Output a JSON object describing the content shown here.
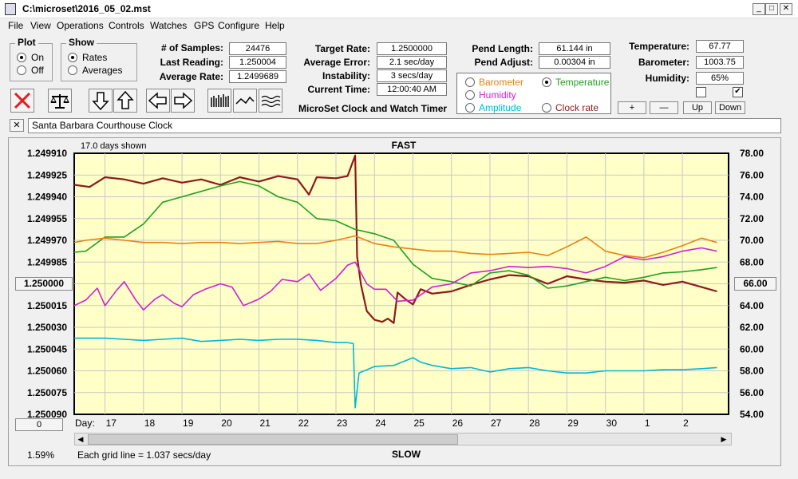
{
  "window": {
    "title": "C:\\microset\\2016_05_02.mst",
    "min": "_",
    "max": "□",
    "close": "✕"
  },
  "menu": [
    "File",
    "View",
    "Operations",
    "Controls",
    "Watches",
    "GPS",
    "Configure",
    "Help"
  ],
  "plot_group": {
    "title": "Plot",
    "options": [
      "On",
      "Off"
    ],
    "selected": "On"
  },
  "show_group": {
    "title": "Show",
    "options": [
      "Rates",
      "Averages"
    ],
    "selected": "Rates"
  },
  "stats": [
    {
      "label": "# of Samples:",
      "value": "24476"
    },
    {
      "label": "Last Reading:",
      "value": "1.250004"
    },
    {
      "label": "Average Rate:",
      "value": "1.2499689"
    }
  ],
  "rates": [
    {
      "label": "Target Rate:",
      "value": "1.2500000"
    },
    {
      "label": "Average Error:",
      "value": "2.1 sec/day"
    },
    {
      "label": "Instability:",
      "value": "3 secs/day"
    },
    {
      "label": "Current Time:",
      "value": "12:00:40 AM"
    }
  ],
  "app_title": "MicroSet Clock and Watch Timer",
  "pendulum": [
    {
      "label": "Pend Length:",
      "value": "61.144 in"
    },
    {
      "label": "Pend Adjust:",
      "value": "0.00304 in"
    }
  ],
  "sensor_radios": [
    {
      "label": "Barometer",
      "color": "#e8820e",
      "selected": false
    },
    {
      "label": "Temperature",
      "color": "#20a020",
      "selected": true
    },
    {
      "label": "Humidity",
      "color": "#d020d0",
      "selected": false
    },
    {
      "label": "Clock rate",
      "color": "#8b1a1a",
      "selected": false
    },
    {
      "label": "Amplitude",
      "color": "#00b8d8",
      "selected": false
    }
  ],
  "env": [
    {
      "label": "Temperature:",
      "value": "67.77"
    },
    {
      "label": "Barometer:",
      "value": "1003.75"
    },
    {
      "label": "Humidity:",
      "value": "65%"
    }
  ],
  "checkboxes": [
    {
      "checked": false,
      "mark": ""
    },
    {
      "checked": true,
      "mark": "✔"
    }
  ],
  "scale_buttons": [
    "+",
    "—",
    "Up",
    "Down"
  ],
  "clock_name": "Santa Barbara Courthouse Clock",
  "clear_button": "✕",
  "chart_left_button": "1.250000",
  "chart_right_button": "66.00",
  "zero_button": "0",
  "percent_text": "1.59%",
  "grid_note": "Each grid line = 1.037 secs/day",
  "chart_data": {
    "type": "line",
    "title": "FAST",
    "bottom_label": "SLOW",
    "days_shown": "17.0 days shown",
    "x_axis_label": "Day:",
    "x_ticks": [
      "17",
      "18",
      "19",
      "20",
      "21",
      "22",
      "23",
      "24",
      "25",
      "26",
      "27",
      "28",
      "29",
      "30",
      "1",
      "2"
    ],
    "y_left_ticks": [
      "1.249910",
      "1.249925",
      "1.249940",
      "1.249955",
      "1.249970",
      "1.249985",
      "1.250000",
      "1.250015",
      "1.250030",
      "1.250045",
      "1.250060",
      "1.250075",
      "1.250090"
    ],
    "y_left_range": [
      1.24991,
      1.25009
    ],
    "y_right_ticks": [
      "78.00",
      "76.00",
      "74.00",
      "72.00",
      "70.00",
      "68.00",
      "66.00",
      "64.00",
      "62.00",
      "60.00",
      "58.00",
      "56.00",
      "54.00"
    ],
    "y_right_range": [
      54,
      78
    ],
    "background": "#ffffc8",
    "x_range": [
      16.2,
      33.2
    ],
    "series": [
      {
        "name": "Clock rate",
        "color": "#8b1a1a",
        "x": [
          16.2,
          16.6,
          17.0,
          17.5,
          18.0,
          18.5,
          19.0,
          19.5,
          20.0,
          20.5,
          21.0,
          21.5,
          22.0,
          22.3,
          22.5,
          23.0,
          23.3,
          23.5,
          23.55,
          23.65,
          23.8,
          24.0,
          24.2,
          24.35,
          24.5,
          24.6,
          24.8,
          25.0,
          25.2,
          25.5,
          26.0,
          26.5,
          27.0,
          27.5,
          28.0,
          28.5,
          29.0,
          29.5,
          30.0,
          30.5,
          31.0,
          31.5,
          32.0,
          32.5,
          32.9
        ],
        "y": [
          75.1,
          74.9,
          75.8,
          75.6,
          75.2,
          75.7,
          75.3,
          75.6,
          75.1,
          75.8,
          75.4,
          75.9,
          75.6,
          74.2,
          75.8,
          75.7,
          75.9,
          77.8,
          68.5,
          65.9,
          63.5,
          62.7,
          62.5,
          62.8,
          62.4,
          65.2,
          64.6,
          64.1,
          65.5,
          65.1,
          65.3,
          65.9,
          66.4,
          66.8,
          66.7,
          66.0,
          66.7,
          66.4,
          66.2,
          66.1,
          66.3,
          65.9,
          66.2,
          65.7,
          65.3
        ]
      },
      {
        "name": "Temperature",
        "color": "#20a020",
        "x": [
          16.2,
          16.5,
          17.0,
          17.5,
          18.0,
          18.5,
          19.0,
          19.5,
          20.0,
          20.5,
          21.0,
          21.5,
          22.0,
          22.5,
          23.0,
          23.5,
          24.0,
          24.5,
          25.0,
          25.5,
          26.0,
          26.5,
          27.0,
          27.5,
          28.0,
          28.5,
          29.0,
          29.5,
          30.0,
          30.5,
          31.0,
          31.5,
          32.0,
          32.5,
          32.9
        ],
        "y": [
          68.9,
          69.0,
          70.3,
          70.3,
          71.5,
          73.5,
          74.0,
          74.5,
          75.0,
          75.4,
          75.0,
          74.0,
          73.5,
          72.0,
          71.8,
          71.0,
          70.6,
          70.0,
          67.8,
          66.5,
          66.2,
          65.8,
          67.0,
          67.2,
          66.8,
          65.6,
          65.8,
          66.2,
          66.6,
          66.3,
          66.6,
          67.0,
          67.1,
          67.3,
          67.5
        ]
      },
      {
        "name": "Barometer",
        "color": "#e8820e",
        "x": [
          16.2,
          16.5,
          17.0,
          17.5,
          18.0,
          18.5,
          19.0,
          19.5,
          20.0,
          20.5,
          21.0,
          21.5,
          22.0,
          22.5,
          23.0,
          23.5,
          24.0,
          24.5,
          25.0,
          25.5,
          26.0,
          26.5,
          27.0,
          27.5,
          28.0,
          28.5,
          29.0,
          29.5,
          30.0,
          30.5,
          31.0,
          31.5,
          32.0,
          32.5,
          32.9
        ],
        "y": [
          69.8,
          70.0,
          70.2,
          70.0,
          69.8,
          69.8,
          69.7,
          69.8,
          69.8,
          69.7,
          69.8,
          69.9,
          69.7,
          69.7,
          70.0,
          70.4,
          69.7,
          69.4,
          69.2,
          69.0,
          69.0,
          68.8,
          68.7,
          68.8,
          68.9,
          68.6,
          69.4,
          70.3,
          69.0,
          68.6,
          68.4,
          68.9,
          69.5,
          70.2,
          69.8
        ]
      },
      {
        "name": "Humidity",
        "color": "#d020d0",
        "x": [
          16.2,
          16.5,
          16.8,
          17.0,
          17.3,
          17.5,
          17.8,
          18.0,
          18.3,
          18.5,
          18.8,
          19.0,
          19.3,
          19.6,
          20.0,
          20.3,
          20.6,
          21.0,
          21.3,
          21.6,
          22.0,
          22.3,
          22.6,
          23.0,
          23.3,
          23.5,
          23.8,
          24.0,
          24.3,
          24.6,
          25.0,
          25.5,
          26.0,
          26.5,
          27.0,
          27.5,
          28.0,
          28.5,
          29.0,
          29.5,
          30.0,
          30.5,
          31.0,
          31.5,
          32.0,
          32.5,
          32.9
        ],
        "y": [
          64.0,
          64.5,
          65.6,
          64.0,
          65.4,
          66.2,
          64.5,
          63.6,
          64.6,
          65.0,
          64.2,
          63.9,
          65.0,
          65.5,
          66.0,
          65.7,
          64.0,
          64.6,
          65.3,
          66.4,
          66.2,
          66.9,
          65.4,
          66.5,
          67.7,
          68.0,
          66.0,
          65.5,
          65.5,
          64.4,
          64.5,
          65.7,
          66.0,
          67.0,
          67.2,
          67.6,
          67.5,
          67.6,
          67.4,
          67.0,
          67.6,
          68.5,
          68.2,
          68.5,
          69.0,
          69.3,
          69.0
        ]
      },
      {
        "name": "Amplitude",
        "color": "#00b8d8",
        "x": [
          16.2,
          16.5,
          17.0,
          17.5,
          18.0,
          18.5,
          19.0,
          19.5,
          20.0,
          20.5,
          21.0,
          21.5,
          22.0,
          22.5,
          23.0,
          23.3,
          23.45,
          23.5,
          23.6,
          24.0,
          24.5,
          25.0,
          25.2,
          25.5,
          26.0,
          26.5,
          27.0,
          27.5,
          28.0,
          28.5,
          29.0,
          29.5,
          30.0,
          30.5,
          31.0,
          31.5,
          32.0,
          32.5,
          32.9
        ],
        "y": [
          61.0,
          61.0,
          61.0,
          60.9,
          60.8,
          60.9,
          61.0,
          60.7,
          60.8,
          60.9,
          60.8,
          60.9,
          60.9,
          60.8,
          60.6,
          60.6,
          60.5,
          54.6,
          57.8,
          58.4,
          58.5,
          59.2,
          58.8,
          58.5,
          58.2,
          58.3,
          57.9,
          58.2,
          58.3,
          58.0,
          57.8,
          57.8,
          58.0,
          58.0,
          58.0,
          58.1,
          58.1,
          58.2,
          58.3
        ]
      }
    ]
  }
}
